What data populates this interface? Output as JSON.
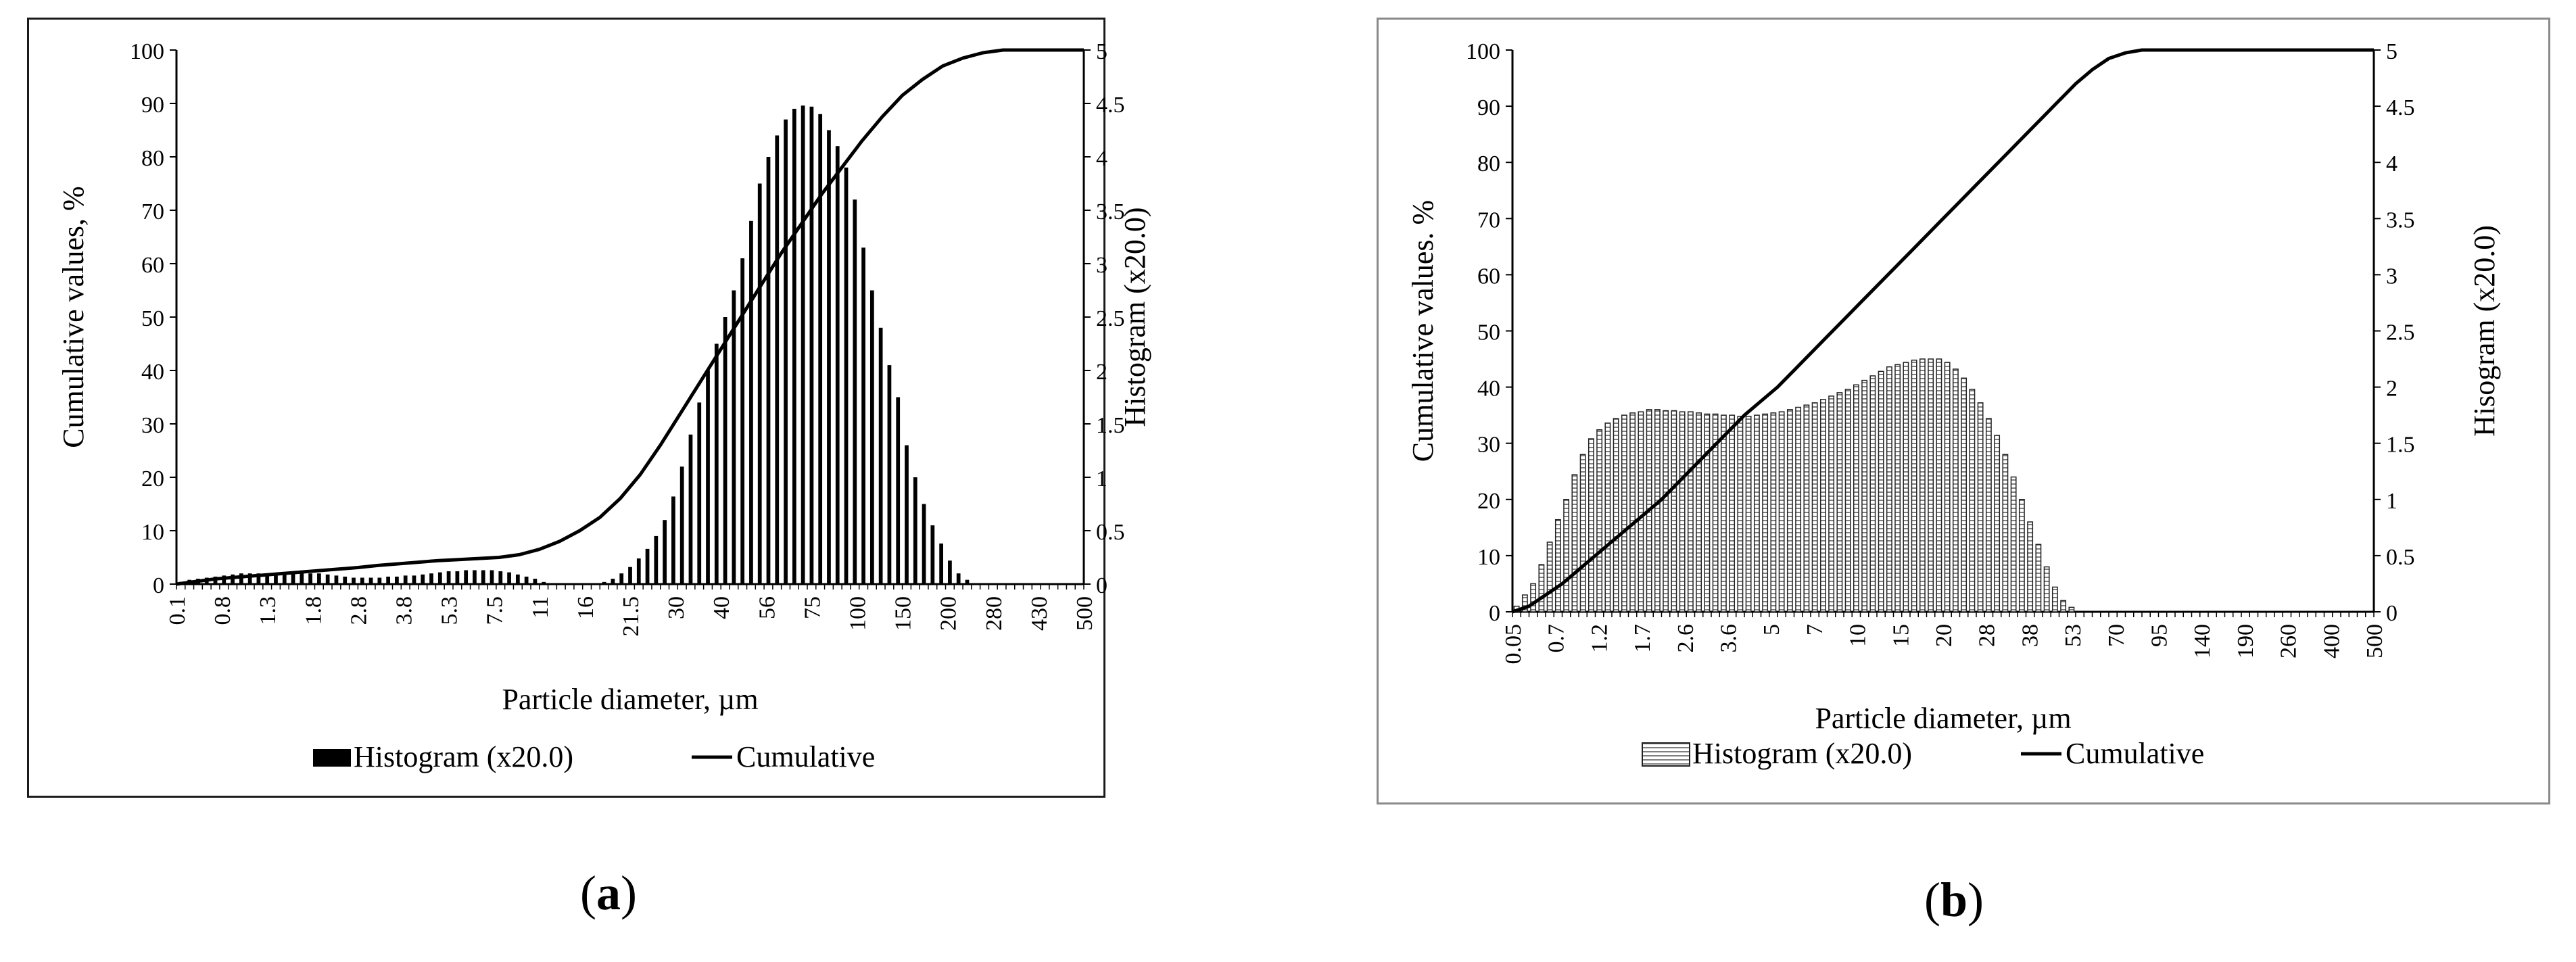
{
  "captions": {
    "a_open": "(",
    "a_letter": "a",
    "a_close": ")",
    "b_open": "(",
    "b_letter": "b",
    "b_close": ")"
  },
  "chart_data": [
    {
      "type": "bar",
      "combo": "bar+line",
      "panel": "a",
      "title": "",
      "xlabel": "Particle diameter, µm",
      "ylabel": "Cumulative values, %",
      "y2label": "Histogram (x20.0)",
      "ylim": [
        0,
        100
      ],
      "y2lim": [
        0,
        5
      ],
      "yticks": [
        "0",
        "10",
        "20",
        "30",
        "40",
        "50",
        "60",
        "70",
        "80",
        "90",
        "100"
      ],
      "y2ticks": [
        "0",
        "0.5",
        "1",
        "1.5",
        "2",
        "2.5",
        "3",
        "3.5",
        "4",
        "4.5",
        "5"
      ],
      "x_tick_labels": [
        "0.1",
        "0.8",
        "1.3",
        "1.8",
        "2.8",
        "3.8",
        "5.3",
        "7.5",
        "11",
        "16",
        "21.5",
        "30",
        "40",
        "56",
        "75",
        "100",
        "150",
        "200",
        "280",
        "430",
        "500"
      ],
      "legend": {
        "position": "bottom",
        "entries": [
          "Histogram (x20.0)",
          "Cumulative"
        ]
      },
      "bar_style": "solid-black",
      "series": [
        {
          "name": "Histogram (x20.0)",
          "axis": "y2",
          "values": [
            0.02,
            0.04,
            0.05,
            0.06,
            0.07,
            0.08,
            0.09,
            0.1,
            0.1,
            0.1,
            0.1,
            0.1,
            0.1,
            0.1,
            0.1,
            0.1,
            0.1,
            0.09,
            0.08,
            0.07,
            0.06,
            0.06,
            0.06,
            0.06,
            0.07,
            0.07,
            0.08,
            0.08,
            0.09,
            0.1,
            0.11,
            0.12,
            0.12,
            0.13,
            0.13,
            0.13,
            0.13,
            0.12,
            0.11,
            0.09,
            0.07,
            0.05,
            0.02,
            0,
            0,
            0,
            0,
            0,
            0,
            0.02,
            0.05,
            0.1,
            0.16,
            0.24,
            0.33,
            0.45,
            0.6,
            0.82,
            1.1,
            1.4,
            1.7,
            2.0,
            2.25,
            2.5,
            2.75,
            3.05,
            3.4,
            3.75,
            4.0,
            4.2,
            4.35,
            4.45,
            4.48,
            4.47,
            4.4,
            4.25,
            4.1,
            3.9,
            3.6,
            3.15,
            2.75,
            2.4,
            2.05,
            1.75,
            1.3,
            1.0,
            0.75,
            0.55,
            0.38,
            0.22,
            0.1,
            0.04,
            0,
            0,
            0,
            0,
            0,
            0,
            0,
            0,
            0,
            0,
            0,
            0,
            0
          ]
        },
        {
          "name": "Cumulative",
          "axis": "y",
          "values": [
            0,
            0.5,
            1,
            1.3,
            1.6,
            1.9,
            2.2,
            2.5,
            2.8,
            3.1,
            3.5,
            3.8,
            4.1,
            4.4,
            4.6,
            4.8,
            5.0,
            5.5,
            6.5,
            8,
            10,
            12.5,
            16,
            20.5,
            26,
            32,
            38,
            44,
            50,
            56,
            62,
            67.5,
            73,
            78,
            83,
            87.5,
            91.5,
            94.5,
            97,
            98.5,
            99.5,
            100,
            100,
            100,
            100,
            100
          ]
        }
      ]
    },
    {
      "type": "bar",
      "combo": "bar+line",
      "panel": "b",
      "title": "",
      "xlabel": "Particle diameter, µm",
      "ylabel": "Cumulative values. %",
      "y2label": "Hisogram (x20.0)",
      "ylim": [
        0,
        100
      ],
      "y2lim": [
        0,
        5
      ],
      "yticks": [
        "0",
        "10",
        "20",
        "30",
        "40",
        "50",
        "60",
        "70",
        "80",
        "90",
        "100"
      ],
      "y2ticks": [
        "0",
        "0.5",
        "1",
        "1.5",
        "2",
        "2.5",
        "3",
        "3.5",
        "4",
        "4.5",
        "5"
      ],
      "x_tick_labels": [
        "0.05",
        "0.7",
        "1.2",
        "1.7",
        "2.6",
        "3.6",
        "5",
        "7",
        "10",
        "15",
        "20",
        "28",
        "38",
        "53",
        "70",
        "95",
        "140",
        "190",
        "260",
        "400",
        "500"
      ],
      "legend": {
        "position": "bottom",
        "entries": [
          "Histogram (x20.0)",
          "Cumulative"
        ]
      },
      "bar_style": "hatched-outline",
      "series": [
        {
          "name": "Histogram (x20.0)",
          "axis": "y2",
          "values": [
            0.05,
            0.15,
            0.25,
            0.42,
            0.62,
            0.82,
            1.0,
            1.22,
            1.4,
            1.54,
            1.62,
            1.68,
            1.72,
            1.75,
            1.77,
            1.78,
            1.8,
            1.8,
            1.79,
            1.79,
            1.78,
            1.78,
            1.77,
            1.76,
            1.76,
            1.75,
            1.75,
            1.74,
            1.74,
            1.75,
            1.76,
            1.77,
            1.78,
            1.8,
            1.82,
            1.84,
            1.86,
            1.89,
            1.92,
            1.95,
            1.98,
            2.02,
            2.06,
            2.1,
            2.14,
            2.18,
            2.2,
            2.22,
            2.24,
            2.25,
            2.25,
            2.25,
            2.22,
            2.16,
            2.08,
            1.98,
            1.86,
            1.72,
            1.57,
            1.4,
            1.2,
            1.0,
            0.8,
            0.6,
            0.4,
            0.22,
            0.1,
            0.04,
            0,
            0,
            0,
            0,
            0,
            0,
            0,
            0,
            0,
            0,
            0,
            0,
            0,
            0,
            0,
            0,
            0,
            0,
            0,
            0,
            0,
            0,
            0,
            0,
            0,
            0,
            0,
            0,
            0,
            0,
            0,
            0,
            0,
            0,
            0,
            0
          ]
        },
        {
          "name": "Cumulative",
          "axis": "y",
          "values": [
            0,
            1,
            3,
            5,
            7.5,
            10,
            12.5,
            15,
            17.5,
            20,
            23,
            26,
            29,
            32,
            35,
            37.5,
            40,
            43,
            46,
            49,
            52,
            55,
            58,
            61,
            64,
            67,
            70,
            73,
            76,
            79,
            82,
            85,
            88,
            91,
            94,
            96.5,
            98.5,
            99.5,
            100,
            100,
            100,
            100,
            100,
            100,
            100,
            100,
            100,
            100,
            100,
            100,
            100,
            100,
            100
          ]
        }
      ]
    }
  ]
}
